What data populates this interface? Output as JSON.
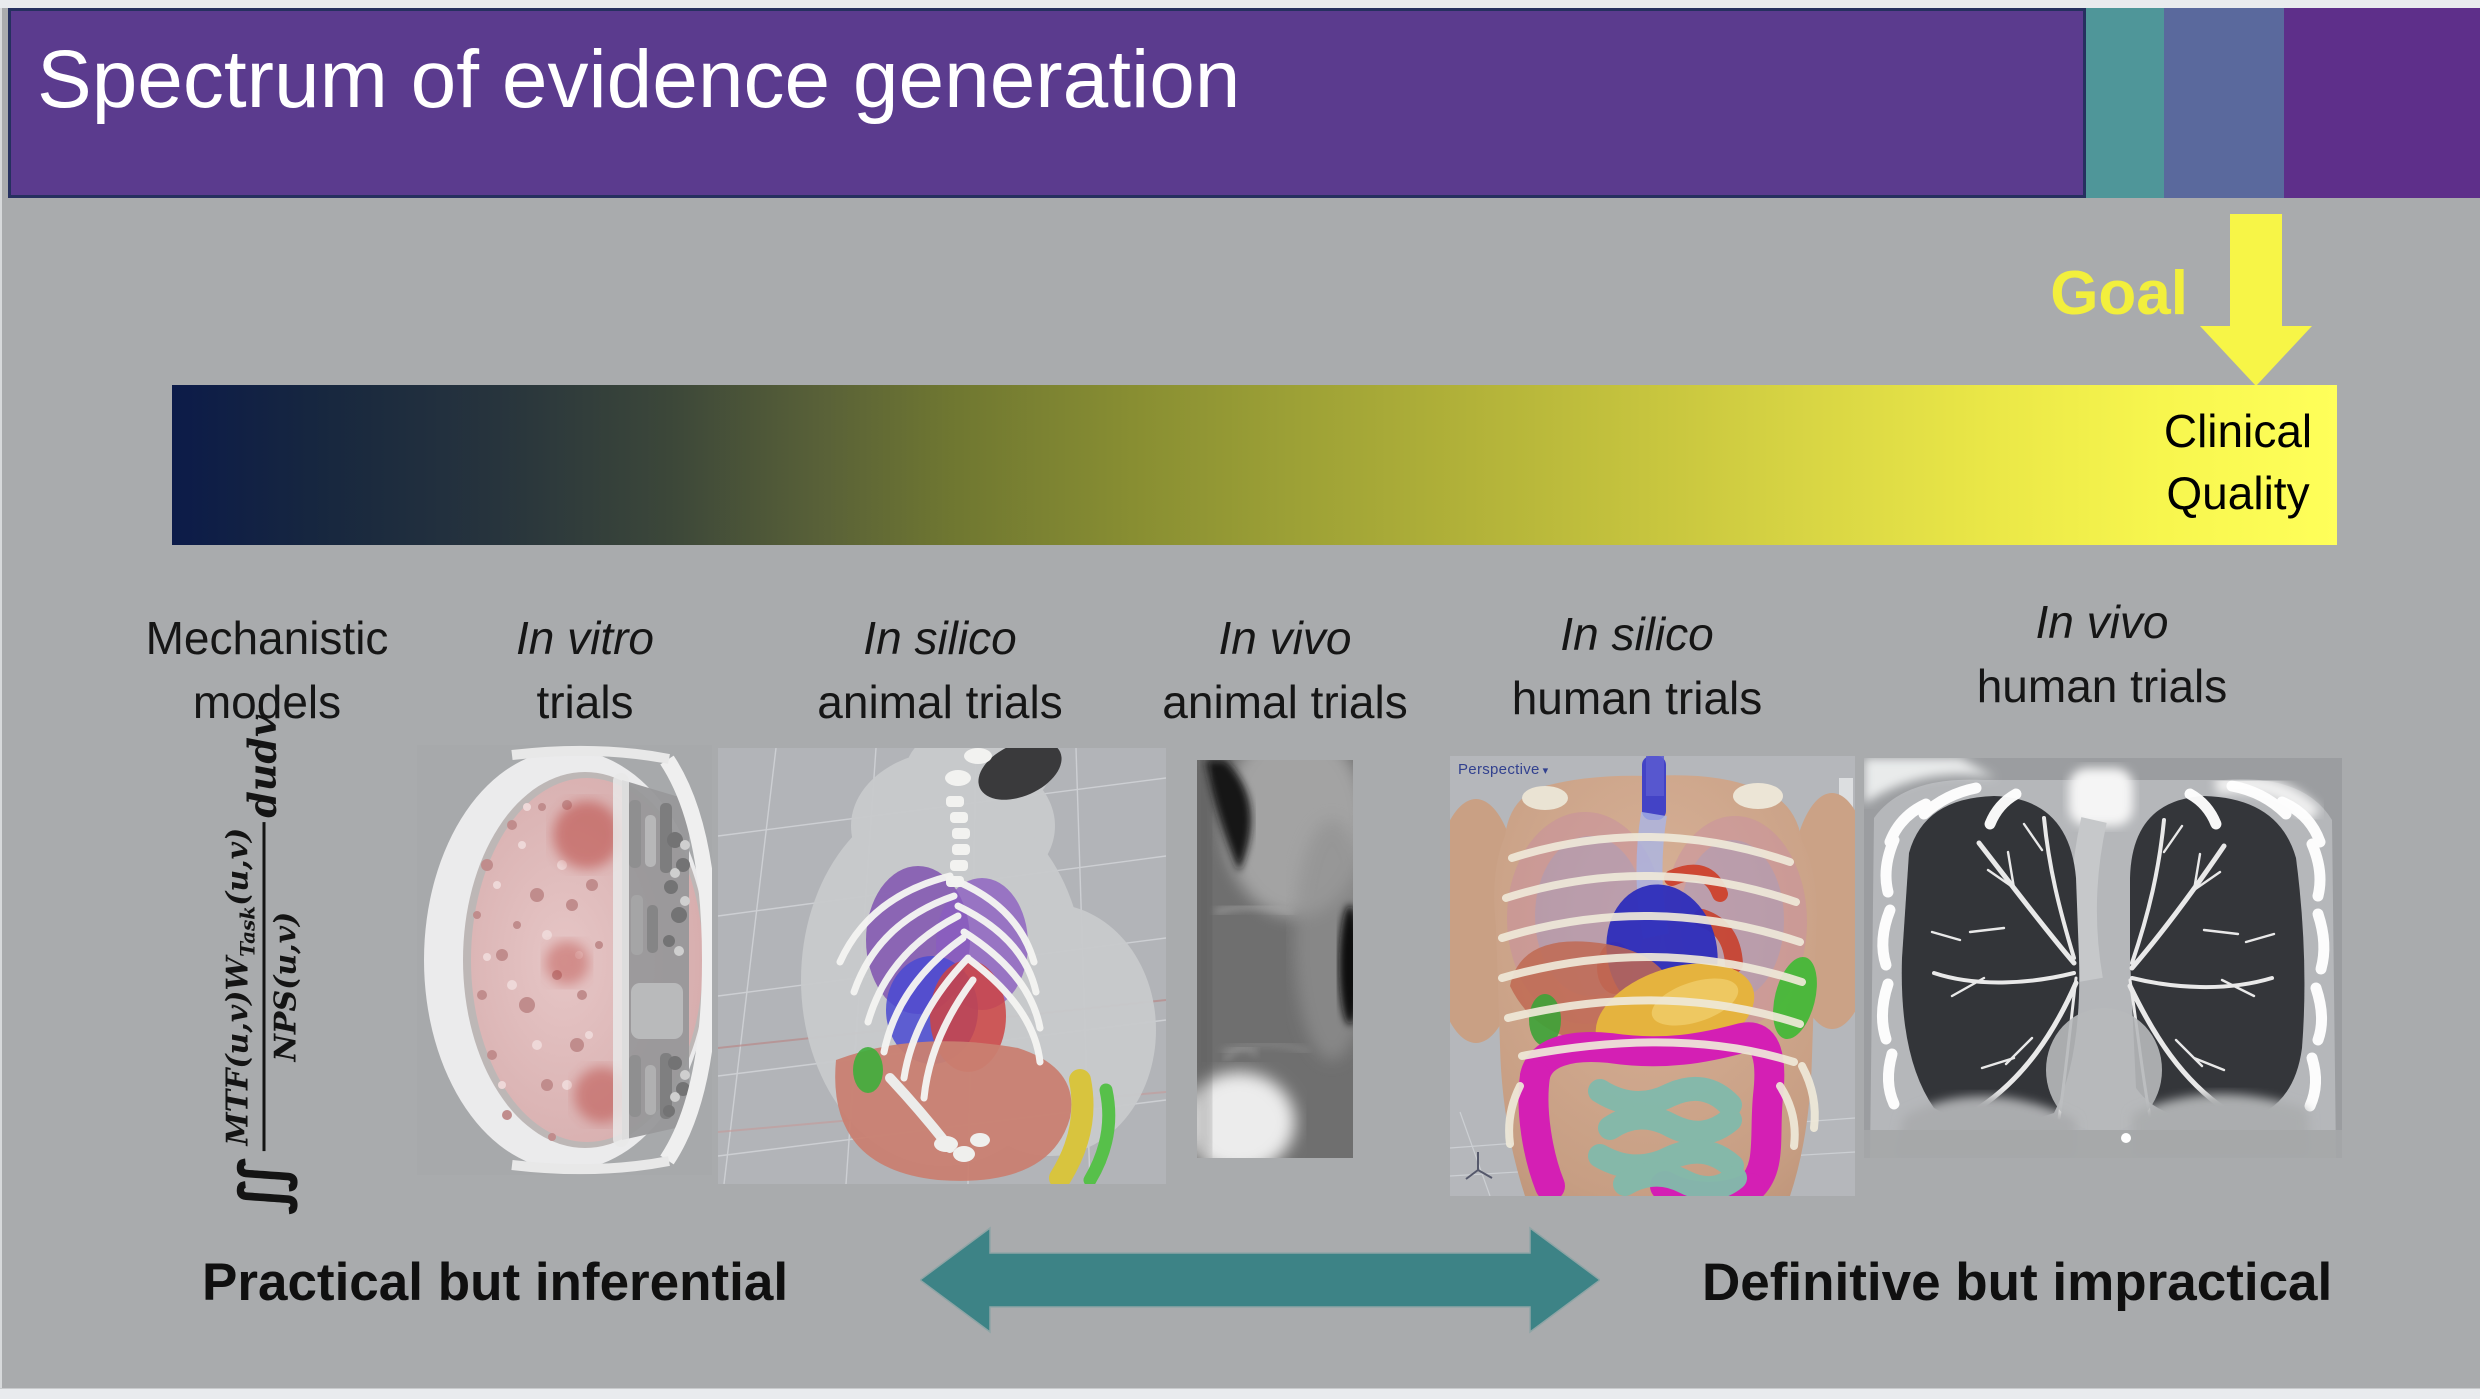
{
  "slide": {
    "title": "Spectrum of evidence generation"
  },
  "goal": {
    "label": "Goal"
  },
  "gradient_bar": {
    "end_label_line1": "Clinical",
    "end_label_line2": "Quality",
    "meaning": "clinical quality increases from left to right",
    "stops": [
      "#0c1b49 0%",
      "#17273f 7%",
      "#27343d 15%",
      "#3c4739 23%",
      "#596138 30%",
      "#6f7731 36%",
      "#878d32 44%",
      "#9da136 52%",
      "#b2b239 60%",
      "#c6c43e 68%",
      "#d9d644 76%",
      "#eae747 84%",
      "#f7f64e 92%",
      "#ffff5a 100%"
    ]
  },
  "spectrum": {
    "categories": [
      {
        "line1": "Mechanistic",
        "line2": "models",
        "line1_italic": false
      },
      {
        "line1": "In vitro",
        "line2": "trials",
        "line1_italic": true
      },
      {
        "line1": "In silico",
        "line2": "animal trials",
        "line1_italic": true
      },
      {
        "line1": "In vivo",
        "line2": "animal trials",
        "line1_italic": true
      },
      {
        "line1": "In silico",
        "line2": "human trials",
        "line1_italic": true
      },
      {
        "line1": "In vivo",
        "line2": "human trials",
        "line1_italic": true
      }
    ]
  },
  "formula": {
    "integral": "∬",
    "numerator_pre": "MTF(u,v)W",
    "numerator_sub": "Task",
    "numerator_post": "(u,v)",
    "denominator": "NPS(u,v)",
    "differential": "dudv"
  },
  "images": {
    "mechanistic": {
      "name": "task-based-image-quality-formula"
    },
    "in_vitro": {
      "name": "physical-phantom-3d-render"
    },
    "in_silico_animal": {
      "name": "digital-mouse-phantom-render"
    },
    "in_vivo_animal": {
      "name": "animal-ct-scan"
    },
    "in_silico_human": {
      "name": "digital-human-phantom-render",
      "viewport_label": "Perspective"
    },
    "in_vivo_human": {
      "name": "human-chest-ct-coronal"
    }
  },
  "icons": {
    "viewport_dropdown_icon": "▾"
  },
  "footer": {
    "left_label": "Practical but inferential",
    "right_label": "Definitive but impractical"
  },
  "colors": {
    "background_gray": "#a9abad",
    "header_purple": "#5b3b8e",
    "accent_teal": "#4f9699",
    "accent_blue": "#5a699d",
    "accent_purple": "#5e2f8a",
    "header_border_navy": "#26305f",
    "goal_yellow": "#f2ef3d",
    "arrow_yellow": "#f7f547",
    "spectrum_arrow_teal": "#3d8386",
    "gradient_start": "#0c1b49",
    "gradient_end": "#ffff5a"
  }
}
